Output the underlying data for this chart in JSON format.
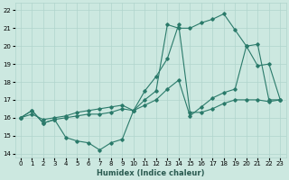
{
  "title": "",
  "xlabel": "Humidex (Indice chaleur)",
  "ylabel": "",
  "bg_color": "#cce8e0",
  "grid_color": "#b0d4cc",
  "line_color": "#2a7a6a",
  "xlim": [
    -0.5,
    23.5
  ],
  "ylim": [
    13.8,
    22.4
  ],
  "xticks": [
    0,
    1,
    2,
    3,
    4,
    5,
    6,
    7,
    8,
    9,
    10,
    11,
    12,
    13,
    14,
    15,
    16,
    17,
    18,
    19,
    20,
    21,
    22,
    23
  ],
  "yticks": [
    14,
    15,
    16,
    17,
    18,
    19,
    20,
    21,
    22
  ],
  "line1_x": [
    0,
    1,
    2,
    3,
    4,
    5,
    6,
    7,
    8,
    9,
    10,
    11,
    12,
    13,
    14,
    15,
    16,
    17,
    18,
    19,
    20,
    21,
    22,
    23
  ],
  "line1_y": [
    16.0,
    16.4,
    15.7,
    15.9,
    14.9,
    14.7,
    14.6,
    14.2,
    14.6,
    14.8,
    16.4,
    17.5,
    18.3,
    19.3,
    21.2,
    16.3,
    16.3,
    16.5,
    16.8,
    17.0,
    17.0,
    17.0,
    16.9,
    17.0
  ],
  "line2_x": [
    0,
    1,
    2,
    3,
    4,
    5,
    6,
    7,
    8,
    9,
    10,
    11,
    12,
    13,
    14,
    15,
    16,
    17,
    18,
    19,
    20,
    21,
    22,
    23
  ],
  "line2_y": [
    16.0,
    16.4,
    15.7,
    15.9,
    16.0,
    16.1,
    16.2,
    16.2,
    16.3,
    16.5,
    16.4,
    17.0,
    17.5,
    21.2,
    21.0,
    21.0,
    21.3,
    21.5,
    21.8,
    20.9,
    20.0,
    18.9,
    19.0,
    17.0
  ],
  "line3_x": [
    0,
    1,
    2,
    3,
    4,
    5,
    6,
    7,
    8,
    9,
    10,
    11,
    12,
    13,
    14,
    15,
    16,
    17,
    18,
    19,
    20,
    21,
    22,
    23
  ],
  "line3_y": [
    16.0,
    16.2,
    15.9,
    16.0,
    16.1,
    16.3,
    16.4,
    16.5,
    16.6,
    16.7,
    16.4,
    16.7,
    17.0,
    17.6,
    18.1,
    16.1,
    16.6,
    17.1,
    17.4,
    17.6,
    20.0,
    20.1,
    17.0,
    17.0
  ],
  "xlabel_color": "#2a5a50",
  "xlabel_fontsize": 6.0,
  "tick_fontsize": 5.0
}
